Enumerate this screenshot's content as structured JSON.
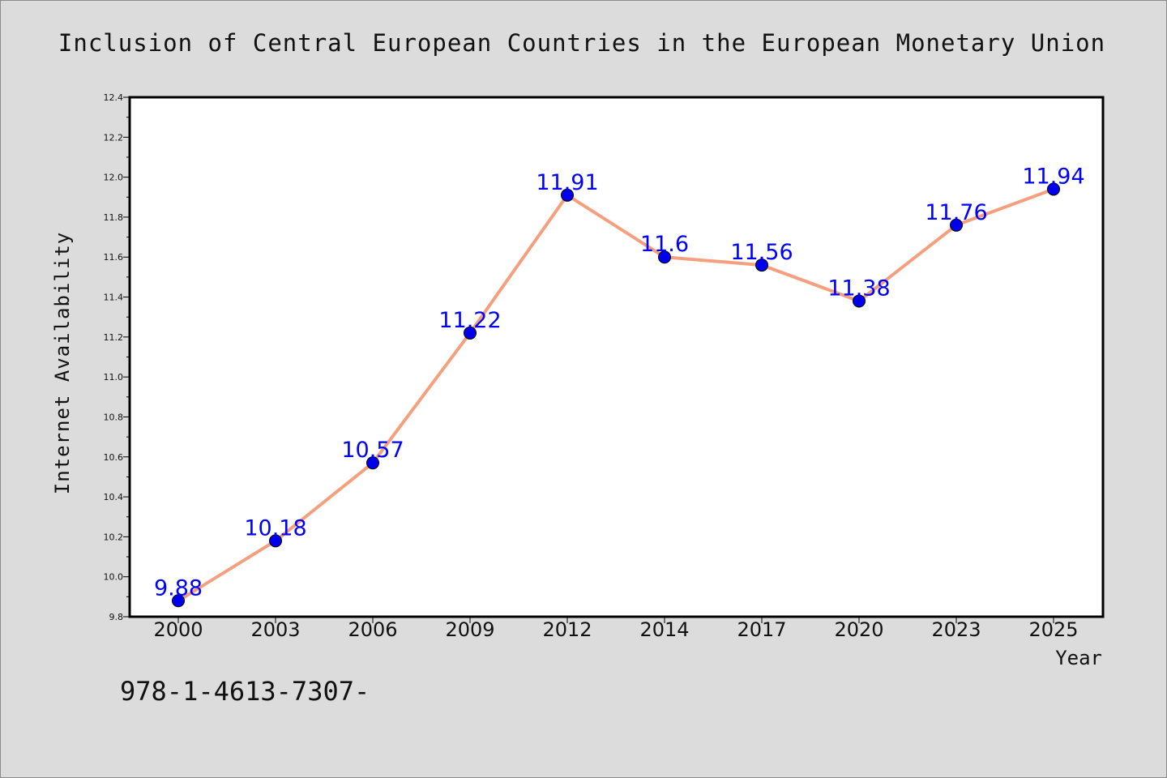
{
  "chart_data": {
    "type": "line",
    "title": "Inclusion of Central European Countries in the European Monetary Union",
    "xlabel": "Year",
    "ylabel": "Internet Availability",
    "categories": [
      "2000",
      "2003",
      "2006",
      "2009",
      "2012",
      "2014",
      "2017",
      "2020",
      "2023",
      "2025"
    ],
    "series": [
      {
        "values": [
          9.88,
          10.18,
          10.57,
          11.22,
          11.91,
          11.6,
          11.56,
          11.38,
          11.76,
          11.94
        ],
        "labels": [
          "9.88",
          "10.18",
          "10.57",
          "11.22",
          "11.91",
          "11.6",
          "11.56",
          "11.38",
          "11.76",
          "11.94"
        ],
        "line_color": "#f4a07f",
        "marker_color": "#0000ee"
      }
    ],
    "ylim": [
      9.8,
      12.4
    ],
    "yticks": [
      "9.8",
      "10.0",
      "10.2",
      "10.4",
      "10.6",
      "10.8",
      "11.0",
      "11.2",
      "11.4",
      "11.6",
      "11.8",
      "12.0",
      "12.2",
      "12.4"
    ],
    "grid": false,
    "legend": "none"
  },
  "footer_text": "978-1-4613-7307-",
  "colors": {
    "background": "#dcdcdc",
    "plot_background": "#ffffff",
    "data_label": "#0000ff"
  }
}
